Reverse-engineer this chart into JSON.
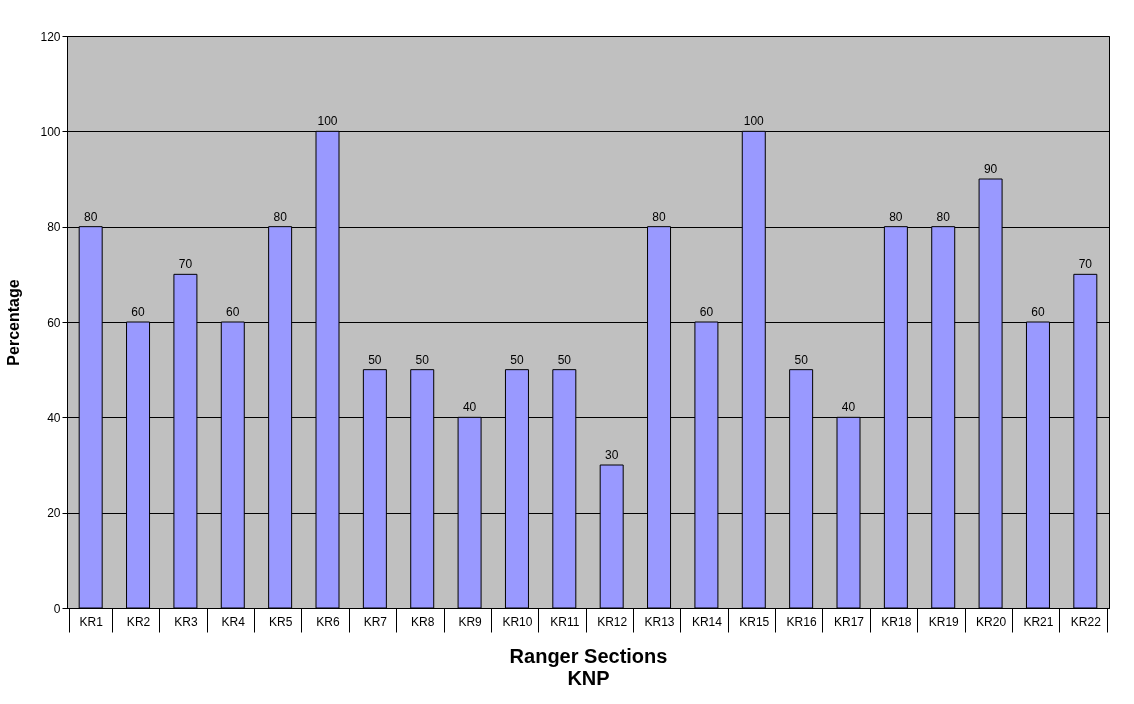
{
  "chart_data": {
    "type": "bar",
    "ylabel": "Percentage",
    "xlabel": "Ranger Sections",
    "annotations": [
      "KNP"
    ],
    "categories": [
      "KR1",
      "KR2",
      "KR3",
      "KR4",
      "KR5",
      "KR6",
      "KR7",
      "KR8",
      "KR9",
      "KR10",
      "KR11",
      "KR12",
      "KR13",
      "KR14",
      "KR15",
      "KR16",
      "KR17",
      "KR18",
      "KR19",
      "KR20",
      "KR21",
      "KR22"
    ],
    "values": [
      80,
      60,
      70,
      60,
      80,
      100,
      50,
      50,
      40,
      50,
      50,
      30,
      80,
      60,
      100,
      50,
      40,
      80,
      80,
      90,
      60,
      70
    ],
    "color": "#9999ff",
    "ylim": [
      0,
      120
    ],
    "yticks": [
      0,
      20,
      40,
      60,
      80,
      100,
      120
    ],
    "grid": "y",
    "data_labels": true
  }
}
